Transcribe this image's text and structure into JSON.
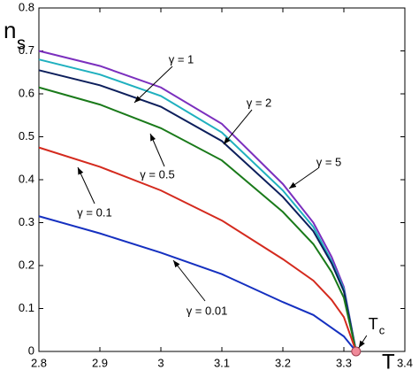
{
  "chart_data": {
    "type": "line",
    "ylabel": {
      "main": "n",
      "sub": "s"
    },
    "xlabel": "T",
    "x": [
      2.8,
      2.9,
      3.0,
      3.1,
      3.2,
      3.25,
      3.28,
      3.3,
      3.32
    ],
    "series": [
      {
        "name": "γ = 5",
        "color": "#7b2fbe",
        "values": [
          0.7,
          0.665,
          0.615,
          0.53,
          0.39,
          0.3,
          0.22,
          0.15,
          0
        ]
      },
      {
        "name": "γ = 2",
        "color": "#1fb0bf",
        "values": [
          0.68,
          0.645,
          0.595,
          0.51,
          0.375,
          0.29,
          0.21,
          0.145,
          0
        ]
      },
      {
        "name": "γ = 1",
        "color": "#0d1f5c",
        "values": [
          0.655,
          0.62,
          0.57,
          0.49,
          0.36,
          0.28,
          0.205,
          0.14,
          0
        ]
      },
      {
        "name": "γ = 0.5",
        "color": "#1a7a1a",
        "values": [
          0.615,
          0.575,
          0.52,
          0.445,
          0.325,
          0.25,
          0.185,
          0.125,
          0
        ]
      },
      {
        "name": "γ = 0.1",
        "color": "#d42a1e",
        "values": [
          0.475,
          0.43,
          0.375,
          0.305,
          0.215,
          0.165,
          0.12,
          0.08,
          0
        ]
      },
      {
        "name": "γ = 0.01",
        "color": "#1530c0",
        "values": [
          0.315,
          0.275,
          0.23,
          0.18,
          0.115,
          0.085,
          0.055,
          0.035,
          0
        ]
      }
    ],
    "critical_point": {
      "label": "T",
      "sub": "c",
      "x": 3.32,
      "y": 0,
      "color": "#f08a9a"
    },
    "xlim": [
      2.8,
      3.4
    ],
    "ylim": [
      0,
      0.8
    ],
    "xticks": [
      2.8,
      2.9,
      3,
      3.1,
      3.2,
      3.3,
      3.4
    ],
    "yticks": [
      0,
      0.1,
      0.2,
      0.3,
      0.4,
      0.5,
      0.6,
      0.7,
      0.8
    ]
  }
}
